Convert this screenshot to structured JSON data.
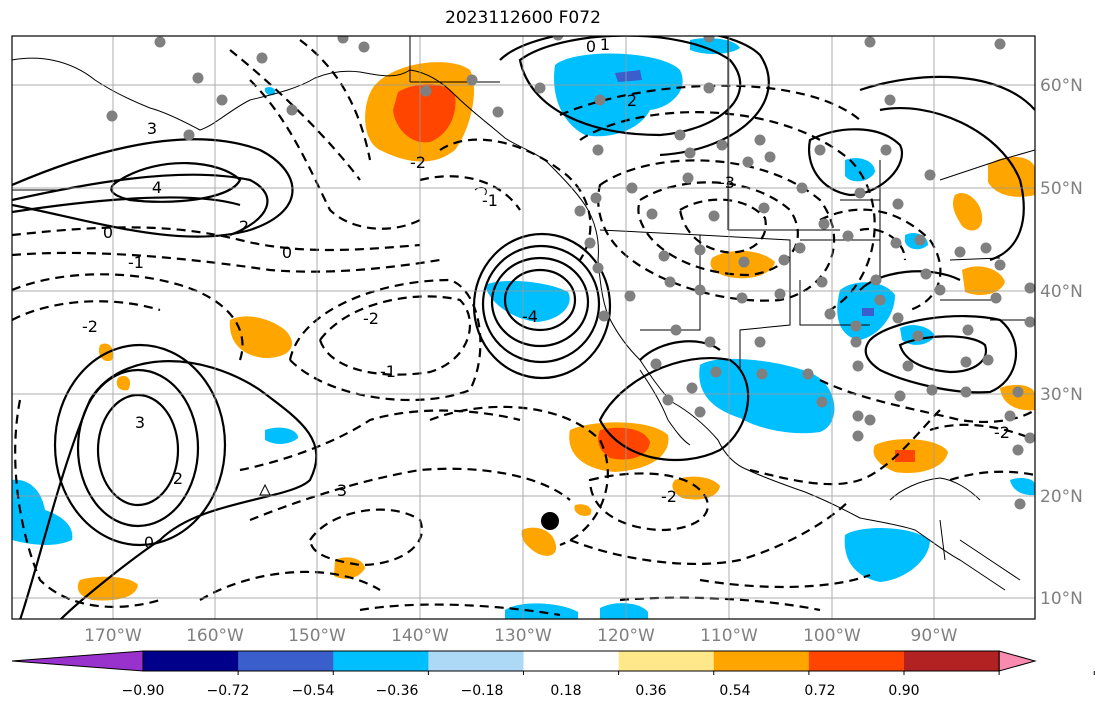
{
  "title": "2023112600 F072",
  "map": {
    "longitude_labels": [
      "170°W",
      "160°W",
      "150°W",
      "140°W",
      "130°W",
      "120°W",
      "110°W",
      "100°W",
      "90°W"
    ],
    "latitude_labels": [
      "60°N",
      "50°N",
      "40°N",
      "30°N",
      "20°N",
      "10°N"
    ],
    "contour_labels": [
      "-1",
      "0",
      "-2",
      "2",
      "3",
      "4",
      "-3",
      "-4",
      "1",
      "0",
      "-2",
      "2",
      "3",
      "-1",
      "0",
      "-2",
      "-1",
      "0",
      "-2",
      "3",
      "2",
      "-2"
    ]
  },
  "colorbar": {
    "tick_labels": [
      "−0.90",
      "−0.72",
      "−0.54",
      "−0.36",
      "−0.18",
      "0.18",
      "0.36",
      "0.54",
      "0.72",
      "0.90"
    ],
    "colors": [
      "#9932CC",
      "#00008B",
      "#3A5FCD",
      "#00BFFF",
      "#ADD8F6",
      "#FFFFFF",
      "#FFE88A",
      "#FFA500",
      "#FF4500",
      "#B22222",
      "#FA8BB0"
    ]
  }
}
